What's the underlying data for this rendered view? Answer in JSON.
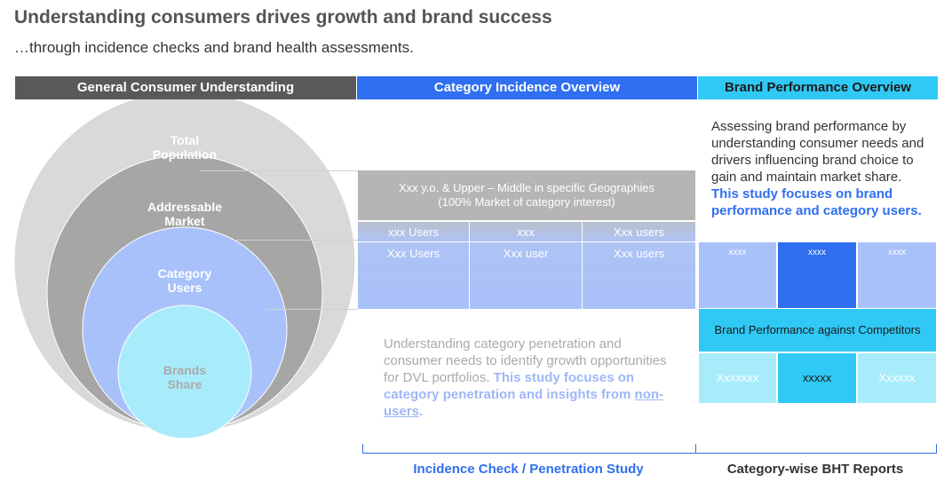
{
  "title": "Understanding consumers drives growth and brand success",
  "subtitle": "…through incidence checks and brand health assessments.",
  "headers": {
    "general": "General Consumer Understanding",
    "category": "Category Incidence Overview",
    "brand": "Brand Performance Overview"
  },
  "circles": {
    "total": [
      "Total",
      "Population"
    ],
    "addressable": [
      "Addressable",
      "Market"
    ],
    "category": [
      "Category",
      "Users"
    ],
    "brands": [
      "Brands",
      "Share"
    ]
  },
  "category_section": {
    "geo_line1": "Xxx y.o. & Upper – Middle in specific Geographies",
    "geo_line2": "(100% Market of category interest)",
    "row1": [
      "xxx Users",
      "xxx",
      "Xxx users"
    ],
    "row2": [
      "Xxx Users",
      "Xxx user",
      "Xxx users"
    ],
    "desc_plain": "Understanding category penetration and consumer needs to identify growth opportunities for DVL portfolios. ",
    "desc_bold": "This study focuses on category penetration and insights from ",
    "desc_link": "non-users",
    "desc_end": "."
  },
  "brand_section": {
    "desc_plain": "Assessing brand performance by understanding consumer needs and drivers influencing brand choice to gain and maintain market share. ",
    "desc_bold": "This study focuses on brand performance and category users.",
    "top_cells": [
      "xxxx",
      "xxxx",
      "xxxx"
    ],
    "middle": "Brand Performance against Competitors",
    "bottom_cells": [
      "Xxxxxxx",
      "xxxxx",
      "Xxxxxx"
    ]
  },
  "footer": {
    "left": "Incidence Check / Penetration Study",
    "right": "Category-wise BHT Reports"
  },
  "colors": {
    "dark_grey": "#595959",
    "blue": "#2f6ff0",
    "cyan": "#30c9f5",
    "light_blue": "#a9c1fa",
    "pale_cyan": "#a8ecfb"
  }
}
